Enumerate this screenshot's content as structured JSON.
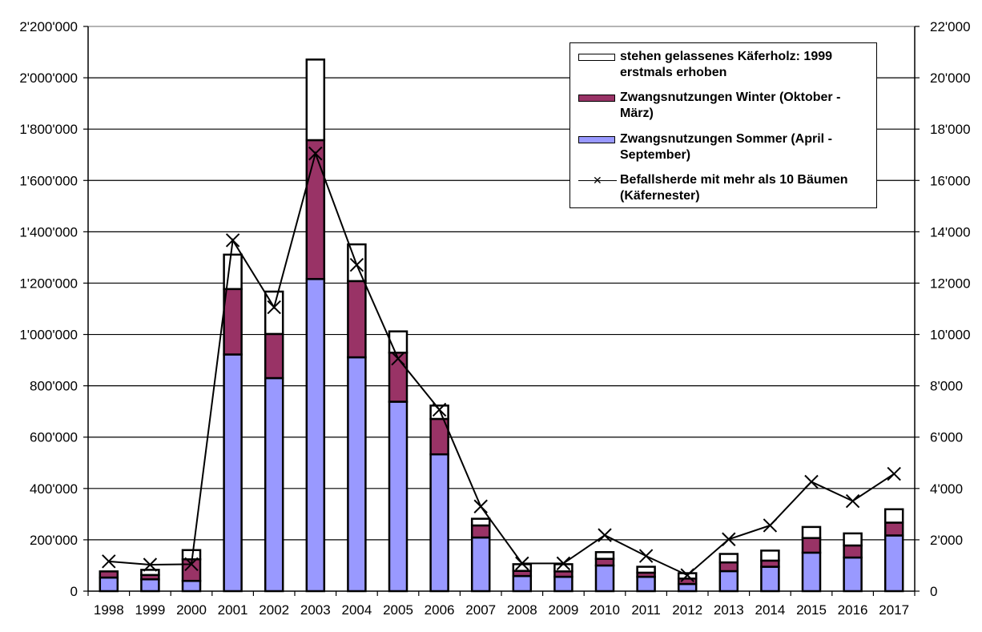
{
  "chart_data": {
    "type": "bar",
    "subtype": "stacked-bar-with-line-secondary-axis",
    "title": "",
    "xlabel": "",
    "ylabel": "",
    "y2label": "",
    "categories": [
      "1998",
      "1999",
      "2000",
      "2001",
      "2002",
      "2003",
      "2004",
      "2005",
      "2006",
      "2007",
      "2008",
      "2009",
      "2010",
      "2011",
      "2012",
      "2013",
      "2014",
      "2015",
      "2016",
      "2017"
    ],
    "ylim": [
      0,
      2200000
    ],
    "y2lim": [
      0,
      22000
    ],
    "yticks": [
      "0",
      "200'000",
      "400'000",
      "600'000",
      "800'000",
      "1'000'000",
      "1'200'000",
      "1'400'000",
      "1'600'000",
      "1'800'000",
      "2'000'000",
      "2'200'000"
    ],
    "y2ticks": [
      "0",
      "2'000",
      "4'000",
      "6'000",
      "8'000",
      "10'000",
      "12'000",
      "14'000",
      "16'000",
      "18'000",
      "20'000",
      "22'000"
    ],
    "grid": true,
    "legend_position": "top-right",
    "series": [
      {
        "name": "Zwangsnutzungen Sommer (April - September)",
        "kind": "bar-stack",
        "axis": "left",
        "color": "#9999FF",
        "values": [
          53000,
          46000,
          40000,
          922000,
          830000,
          1216000,
          911000,
          738000,
          533000,
          209000,
          59000,
          56000,
          100000,
          56000,
          28000,
          78000,
          95000,
          150000,
          131000,
          217000
        ]
      },
      {
        "name": "Zwangsnutzungen Winter (Oktober - März)",
        "kind": "bar-stack",
        "axis": "left",
        "color": "#993366",
        "values": [
          24000,
          17000,
          84000,
          255000,
          172000,
          541000,
          297000,
          191000,
          138000,
          47000,
          20000,
          21000,
          26000,
          16000,
          21000,
          34000,
          24000,
          57000,
          47000,
          50000
        ]
      },
      {
        "name": "stehen gelassenes Käferholz: 1999 erstmals erhoben",
        "kind": "bar-stack",
        "axis": "left",
        "color": "#FFFFFF",
        "values": [
          0,
          20000,
          36000,
          134000,
          165000,
          314000,
          143000,
          83000,
          52000,
          26000,
          26000,
          28000,
          26000,
          23000,
          21000,
          33000,
          39000,
          43000,
          47000,
          52000
        ]
      },
      {
        "name": "Befallsherde mit mehr als 10 Bäumen (Käfernester)",
        "kind": "line",
        "axis": "right",
        "color": "#000000",
        "marker": "x",
        "values": [
          1160,
          1030,
          1050,
          13670,
          11060,
          17050,
          12710,
          9060,
          7070,
          3300,
          1080,
          1080,
          2180,
          1370,
          620,
          2020,
          2560,
          4260,
          3510,
          4570
        ]
      }
    ],
    "legend_entries": [
      {
        "label": "stehen gelassenes Käferholz: 1999 erstmals erhoben",
        "swatch": "box",
        "color": "#FFFFFF"
      },
      {
        "label": "Zwangsnutzungen Winter (Oktober - März)",
        "swatch": "box",
        "color": "#993366"
      },
      {
        "label": "Zwangsnutzungen Sommer (April - September)",
        "swatch": "box",
        "color": "#9999FF"
      },
      {
        "label": "Befallsherde mit mehr als 10 Bäumen (Käfernester)",
        "swatch": "line-x",
        "color": "#000000"
      }
    ]
  }
}
